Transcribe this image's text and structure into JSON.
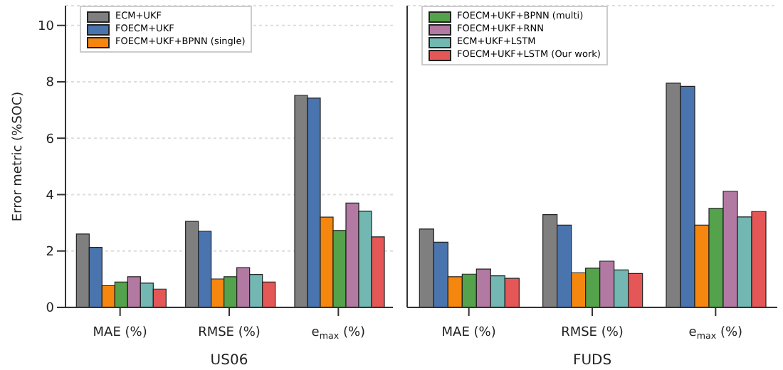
{
  "chart_data": [
    {
      "type": "bar",
      "xlabel": "US06",
      "ylabel": "Error metric (%SOC)",
      "categories": [
        "MAE (%)",
        "RMSE (%)",
        "e$_{max}$ (%)"
      ],
      "ylim": [
        0,
        10.7
      ],
      "yticks": [
        0,
        2,
        4,
        6,
        8,
        10
      ],
      "grid": "y",
      "legend": "top left",
      "series": [
        {
          "name": "ECM+UKF",
          "color": "#7f7f7f",
          "values": [
            2.6,
            3.05,
            7.52
          ]
        },
        {
          "name": "FOECM+UKF",
          "color": "#4a74ae",
          "values": [
            2.13,
            2.7,
            7.42
          ]
        },
        {
          "name": "FOECM+UKF+BPNN (single)",
          "color": "#f5870f",
          "values": [
            0.77,
            1.01,
            3.2
          ]
        },
        {
          "color": "#54a24b",
          "values": [
            0.9,
            1.09,
            2.73
          ]
        },
        {
          "color": "#b279a2",
          "values": [
            1.09,
            1.41,
            3.7
          ]
        },
        {
          "color": "#72b7b2",
          "values": [
            0.86,
            1.17,
            3.41
          ]
        },
        {
          "color": "#e45756",
          "values": [
            0.65,
            0.9,
            2.5
          ]
        }
      ]
    },
    {
      "type": "bar",
      "xlabel": "FUDS",
      "categories": [
        "MAE (%)",
        "RMSE (%)",
        "e$_{max}$ (%)"
      ],
      "ylim": [
        0,
        10.7
      ],
      "yticks": [
        0,
        2,
        4,
        6,
        8,
        10
      ],
      "grid": "y",
      "legend": "top left",
      "tick_labels": "x",
      "series": [
        {
          "color": "#7f7f7f",
          "values": [
            2.78,
            3.29,
            7.95
          ]
        },
        {
          "color": "#4a74ae",
          "values": [
            2.31,
            2.92,
            7.84
          ]
        },
        {
          "color": "#f5870f",
          "values": [
            1.09,
            1.23,
            2.92
          ]
        },
        {
          "name": "FOECM+UKF+BPNN (multi)",
          "color": "#54a24b",
          "values": [
            1.18,
            1.39,
            3.51
          ]
        },
        {
          "name": "FOECM+UKF+RNN",
          "color": "#b279a2",
          "values": [
            1.36,
            1.64,
            4.12
          ]
        },
        {
          "name": "ECM+UKF+LSTM",
          "color": "#72b7b2",
          "values": [
            1.12,
            1.33,
            3.21
          ]
        },
        {
          "name": "FOECM+UKF+LSTM (Our work)",
          "color": "#e45756",
          "values": [
            1.03,
            1.2,
            3.4
          ]
        }
      ]
    }
  ]
}
